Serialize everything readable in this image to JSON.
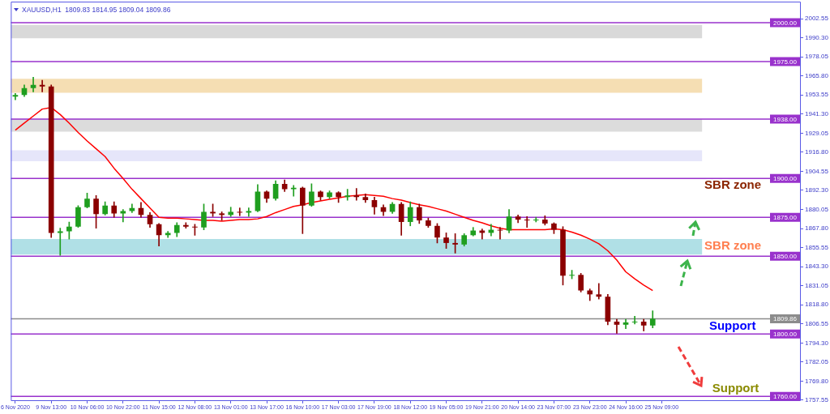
{
  "chart_data": {
    "type": "candlestick",
    "title": "XAUUSD,H1  1809.83 1814.95 1809.04 1809.86",
    "categories": [
      "6 Nov 2020",
      null,
      null,
      null,
      "9 Nov 13:00",
      null,
      null,
      null,
      "10 Nov 06:00",
      null,
      null,
      null,
      "10 Nov 22:00",
      null,
      null,
      null,
      "11 Nov 15:00",
      null,
      null,
      null,
      "12 Nov 08:00",
      null,
      null,
      null,
      "13 Nov 01:00",
      null,
      null,
      null,
      "13 Nov 17:00",
      null,
      null,
      null,
      "16 Nov 10:00",
      null,
      null,
      null,
      "17 Nov 03:00",
      null,
      null,
      null,
      "17 Nov 19:00",
      null,
      null,
      null,
      "18 Nov 12:00",
      null,
      null,
      null,
      "19 Nov 05:00",
      null,
      null,
      null,
      "19 Nov 21:00",
      null,
      null,
      null,
      "20 Nov 14:00",
      null,
      null,
      null,
      "23 Nov 07:00",
      null,
      null,
      null,
      "23 Nov 23:00",
      null,
      null,
      null,
      "24 Nov 16:00",
      null,
      null,
      null,
      "25 Nov 09:00"
    ],
    "ohlc": [
      [
        1952.5,
        1954.5,
        1950.5,
        1953.5
      ],
      [
        1953.5,
        1960,
        1952.5,
        1958
      ],
      [
        1958,
        1965,
        1955.5,
        1960
      ],
      [
        1960,
        1963,
        1955.5,
        1959
      ],
      [
        1959,
        1960,
        1862,
        1865
      ],
      [
        1865,
        1868,
        1850.5,
        1866
      ],
      [
        1866,
        1872,
        1861,
        1869
      ],
      [
        1869,
        1882.5,
        1868.5,
        1881.5
      ],
      [
        1881.5,
        1890.5,
        1881,
        1887
      ],
      [
        1887,
        1889,
        1868,
        1877
      ],
      [
        1877,
        1885,
        1876.5,
        1882.5
      ],
      [
        1882.5,
        1885,
        1875,
        1877.5
      ],
      [
        1877.5,
        1880,
        1872,
        1879
      ],
      [
        1879,
        1883.5,
        1878,
        1881
      ],
      [
        1881,
        1884.5,
        1875,
        1876.5
      ],
      [
        1876.5,
        1878,
        1868.5,
        1870.5
      ],
      [
        1870.5,
        1871,
        1856.5,
        1863.5
      ],
      [
        1863.5,
        1866,
        1862,
        1865
      ],
      [
        1865,
        1871.5,
        1862.5,
        1870
      ],
      [
        1870,
        1871.5,
        1868,
        1869
      ],
      [
        1869,
        1870.5,
        1863.5,
        1868.5
      ],
      [
        1868.5,
        1883.5,
        1867,
        1878.5
      ],
      [
        1878.5,
        1883.5,
        1875.5,
        1877.5
      ],
      [
        1877.5,
        1878.5,
        1873,
        1876.5
      ],
      [
        1876.5,
        1881.5,
        1875.5,
        1878.5
      ],
      [
        1878.5,
        1881,
        1876,
        1878
      ],
      [
        1878,
        1881,
        1875.5,
        1879
      ],
      [
        1879,
        1896,
        1878.5,
        1891.5
      ],
      [
        1891.5,
        1892,
        1884.5,
        1887
      ],
      [
        1887,
        1898.5,
        1886,
        1896.5
      ],
      [
        1896.5,
        1899,
        1891.5,
        1893
      ],
      [
        1893,
        1895.5,
        1888.5,
        1894
      ],
      [
        1894,
        1894.5,
        1864.5,
        1882.5
      ],
      [
        1882.5,
        1896.5,
        1882,
        1891.5
      ],
      [
        1891.5,
        1892,
        1886,
        1888
      ],
      [
        1888,
        1892,
        1887,
        1891
      ],
      [
        1891,
        1891.5,
        1884.5,
        1888
      ],
      [
        1888,
        1893,
        1886,
        1889
      ],
      [
        1889,
        1893.5,
        1886,
        1888
      ],
      [
        1888,
        1890,
        1884.5,
        1886
      ],
      [
        1886,
        1888,
        1877,
        1881.5
      ],
      [
        1881.5,
        1883,
        1876,
        1878.5
      ],
      [
        1878.5,
        1884.5,
        1877.5,
        1883.5
      ],
      [
        1883.5,
        1884.5,
        1863.5,
        1872
      ],
      [
        1872,
        1885,
        1869.5,
        1881.5
      ],
      [
        1881.5,
        1883.5,
        1871,
        1873
      ],
      [
        1873,
        1874.5,
        1868.5,
        1869.5
      ],
      [
        1869.5,
        1871,
        1858.5,
        1862
      ],
      [
        1862,
        1865,
        1855,
        1858.5
      ],
      [
        1858.5,
        1864.5,
        1852,
        1857.5
      ],
      [
        1857.5,
        1864.5,
        1856.5,
        1863.5
      ],
      [
        1863.5,
        1868.5,
        1863,
        1866.5
      ],
      [
        1866.5,
        1867.5,
        1861,
        1865
      ],
      [
        1865,
        1870.5,
        1863,
        1867
      ],
      [
        1867,
        1868.5,
        1861,
        1866.5
      ],
      [
        1866.5,
        1880,
        1865,
        1875.5
      ],
      [
        1875.5,
        1876.5,
        1871.5,
        1873.5
      ],
      [
        1873.5,
        1875.5,
        1868.5,
        1873
      ],
      [
        1873,
        1875,
        1872,
        1873.5
      ],
      [
        1873.5,
        1876,
        1870,
        1871
      ],
      [
        1871,
        1871.5,
        1864.5,
        1867
      ],
      [
        1867,
        1869,
        1831.5,
        1837.5
      ],
      [
        1837.5,
        1841,
        1835.5,
        1838
      ],
      [
        1838,
        1839,
        1827,
        1828
      ],
      [
        1828,
        1829,
        1821.5,
        1825.5
      ],
      [
        1825.5,
        1832.5,
        1822.5,
        1824
      ],
      [
        1824,
        1825.5,
        1806,
        1808
      ],
      [
        1808,
        1809.5,
        1800.5,
        1806
      ],
      [
        1806,
        1809.5,
        1803.5,
        1807.5
      ],
      [
        1807.5,
        1811.5,
        1806.5,
        1808
      ],
      [
        1808,
        1809.5,
        1802,
        1805.5
      ],
      [
        1805.5,
        1814.95,
        1804,
        1809.86
      ],
      null
    ],
    "colors": [
      "#1f9e1f",
      "#1f9e1f",
      "#1f9e1f",
      "#8b0000",
      "#8b0000",
      "#1f9e1f",
      "#1f9e1f",
      "#1f9e1f",
      "#1f9e1f",
      "#8b0000",
      "#1f9e1f",
      "#8b0000",
      "#1f9e1f",
      "#1f9e1f",
      "#8b0000",
      "#8b0000",
      "#8b0000",
      "#1f9e1f",
      "#1f9e1f",
      "#8b0000",
      "#8b0000",
      "#1f9e1f",
      "#8b0000",
      "#8b0000",
      "#1f9e1f",
      "#8b0000",
      "#1f9e1f",
      "#1f9e1f",
      "#8b0000",
      "#1f9e1f",
      "#8b0000",
      "#1f9e1f",
      "#8b0000",
      "#1f9e1f",
      "#8b0000",
      "#1f9e1f",
      "#8b0000",
      "#1f9e1f",
      "#8b0000",
      "#8b0000",
      "#8b0000",
      "#8b0000",
      "#1f9e1f",
      "#8b0000",
      "#1f9e1f",
      "#8b0000",
      "#8b0000",
      "#8b0000",
      "#8b0000",
      "#8b0000",
      "#1f9e1f",
      "#1f9e1f",
      "#8b0000",
      "#1f9e1f",
      "#8b0000",
      "#1f9e1f",
      "#8b0000",
      "#8b0000",
      "#1f9e1f",
      "#8b0000",
      "#8b0000",
      "#8b0000",
      "#1f9e1f",
      "#8b0000",
      "#8b0000",
      "#8b0000",
      "#8b0000",
      "#8b0000",
      "#1f9e1f",
      "#1f9e1f",
      "#8b0000",
      "#1f9e1f",
      null
    ],
    "series": [
      {
        "type": "line",
        "color": "#ff0000",
        "values": [
          1931,
          1935.5,
          1940,
          1944.5,
          1945.5,
          1941,
          1935.5,
          1929.5,
          1924,
          1919,
          1914,
          1906.5,
          1900,
          1893,
          1887,
          1881,
          1875,
          1874.5,
          1874.5,
          1874,
          1873.5,
          1873,
          1873,
          1872.5,
          1873,
          1873.5,
          1873.5,
          1874,
          1875.5,
          1878,
          1880,
          1882,
          1883,
          1884.5,
          1885.5,
          1886.5,
          1887.5,
          1888.5,
          1889,
          1889.5,
          1889,
          1888.5,
          1887,
          1886,
          1884.5,
          1883,
          1882,
          1880.5,
          1879,
          1877,
          1875,
          1873,
          1871.5,
          1869.5,
          1868,
          1867,
          1867,
          1867,
          1867,
          1867,
          1867.5,
          1867,
          1865.5,
          1863.5,
          1861,
          1858,
          1853.5,
          1847.5,
          1840,
          1835.5,
          1831.5,
          1828,
          null
        ]
      }
    ],
    "ylim": [
      1757,
      2013.5
    ],
    "yticks": [
      {
        "value": 2002.55,
        "label": "2002.55"
      },
      {
        "value": 1990.3,
        "label": "1990.30"
      },
      {
        "value": 1978.05,
        "label": "1978.05"
      },
      {
        "value": 1965.8,
        "label": "1965.80"
      },
      {
        "value": 1953.55,
        "label": "1953.55"
      },
      {
        "value": 1941.3,
        "label": "1941.30"
      },
      {
        "value": 1929.05,
        "label": "1929.05"
      },
      {
        "value": 1916.8,
        "label": "1916.80"
      },
      {
        "value": 1904.55,
        "label": "1904.55"
      },
      {
        "value": 1892.3,
        "label": "1892.30"
      },
      {
        "value": 1880.05,
        "label": "1880.05"
      },
      {
        "value": 1867.8,
        "label": "1867.80"
      },
      {
        "value": 1855.55,
        "label": "1855.55"
      },
      {
        "value": 1843.3,
        "label": "1843.30"
      },
      {
        "value": 1831.05,
        "label": "1831.05"
      },
      {
        "value": 1818.8,
        "label": "1818.80"
      },
      {
        "value": 1806.55,
        "label": "1806.55"
      },
      {
        "value": 1794.3,
        "label": "1794.30"
      },
      {
        "value": 1782.05,
        "label": "1782.05"
      },
      {
        "value": 1769.8,
        "label": "1769.80"
      },
      {
        "value": 1757.55,
        "label": "1757.55"
      }
    ],
    "ref_lines": [
      {
        "axis": "y",
        "value": 2000,
        "label": "2000.00",
        "color": "#9932cc"
      },
      {
        "axis": "y",
        "value": 1975,
        "label": "1975.00",
        "color": "#9932cc"
      },
      {
        "axis": "y",
        "value": 1938,
        "label": "1938.00",
        "color": "#9932cc"
      },
      {
        "axis": "y",
        "value": 1900,
        "label": "1900.00",
        "color": "#9932cc"
      },
      {
        "axis": "y",
        "value": 1875,
        "label": "1875.00",
        "color": "#9932cc"
      },
      {
        "axis": "y",
        "value": 1850,
        "label": "1850.00",
        "color": "#9932cc"
      },
      {
        "axis": "y",
        "value": 1800,
        "label": "1800.00",
        "color": "#9932cc"
      },
      {
        "axis": "y",
        "value": 1760,
        "label": "1760.00",
        "color": "#9932cc"
      },
      {
        "axis": "y",
        "value": 1809.86,
        "label": "1809.86",
        "color": "#8c8c8c"
      }
    ],
    "bands": [
      {
        "axis": "y",
        "from": 1990,
        "to": 1998.5,
        "color": "#d9d9d9"
      },
      {
        "axis": "y",
        "from": 1955,
        "to": 1964,
        "color": "#f5deb3"
      },
      {
        "axis": "y",
        "from": 1930,
        "to": 1938,
        "color": "#dcdcdc"
      },
      {
        "axis": "y",
        "from": 1911,
        "to": 1918,
        "color": "#e6e6fa"
      },
      {
        "axis": "y",
        "from": 1851,
        "to": 1861,
        "color": "#b0e0e6"
      }
    ],
    "annotations": [
      "SBR zone",
      "SBR zone",
      "Support",
      "Support"
    ]
  }
}
